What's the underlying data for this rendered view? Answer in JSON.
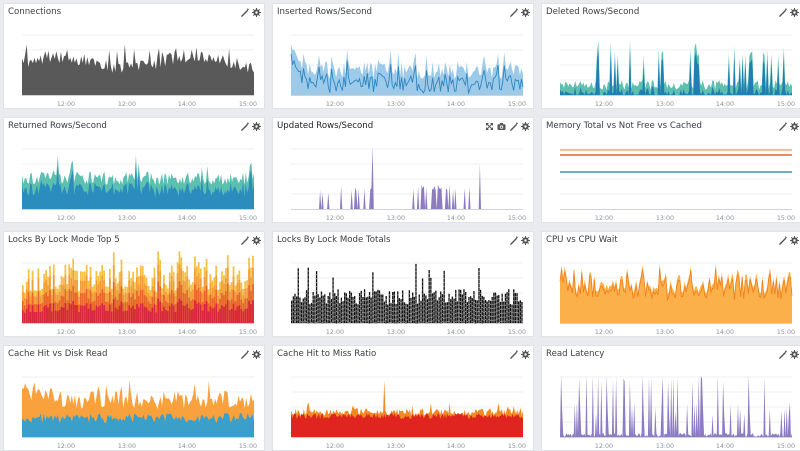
{
  "dashboard": {
    "panels": [
      {
        "title": "Connections",
        "tools": [
          "edit-icon",
          "gear-icon"
        ],
        "x_ticks": [
          "12:00",
          "12:00",
          "14:00",
          "15:00"
        ],
        "chart_data": {
          "type": "area",
          "x": [
            "12:00",
            "12:00",
            "14:00",
            "15:00"
          ],
          "series": [
            {
              "color": "#595959"
            }
          ]
        }
      },
      {
        "title": "Inserted Rows/Second",
        "tools": [
          "edit-icon",
          "gear-icon"
        ],
        "x_ticks": [
          "12:00",
          "13:00",
          "14:00",
          "15:00"
        ],
        "chart_data": {
          "type": "area",
          "x": [
            "12:00",
            "13:00",
            "14:00",
            "15:00"
          ],
          "series": [
            {
              "color": "#9ecae9"
            },
            {
              "color": "#2e86c1"
            }
          ]
        }
      },
      {
        "title": "Deleted Rows/Second",
        "tools": [
          "edit-icon",
          "gear-icon"
        ],
        "x_ticks": [
          "12:00",
          "13:00",
          "14:00",
          "15:00"
        ],
        "chart_data": {
          "type": "area",
          "x": [
            "12:00",
            "13:00",
            "14:00",
            "15:00"
          ],
          "series": [
            {
              "color": "#5bc0b0"
            },
            {
              "color": "#1f7fb4"
            }
          ]
        }
      },
      {
        "title": "Returned Rows/Second",
        "tools": [
          "edit-icon",
          "gear-icon"
        ],
        "x_ticks": [
          "12:00",
          "13:00",
          "14:00",
          "15:00"
        ],
        "chart_data": {
          "type": "area",
          "x": [
            "12:00",
            "13:00",
            "14:00",
            "15:00"
          ],
          "series": [
            {
              "color": "#5bc0b0"
            },
            {
              "color": "#2b8cbe"
            }
          ]
        }
      },
      {
        "title": "Updated Rows/Second",
        "tools": [
          "expand-icon",
          "camera-icon",
          "edit-icon",
          "gear-icon"
        ],
        "x_ticks": [
          "12:00",
          "13:00",
          "14:00",
          "15:00"
        ],
        "chart_data": {
          "type": "area",
          "x": [
            "12:00",
            "13:00",
            "14:00",
            "15:00"
          ],
          "series": [
            {
              "color": "#8e7cc3"
            }
          ]
        }
      },
      {
        "title": "Memory Total vs Not Free vs Cached",
        "tools": [
          "edit-icon",
          "gear-icon"
        ],
        "x_ticks": [
          "12:00",
          "13:00",
          "14:00",
          "15:00"
        ],
        "chart_data": {
          "type": "line",
          "x": [
            "12:00",
            "13:00",
            "14:00",
            "15:00"
          ],
          "series": [
            {
              "color": "#f0a060"
            },
            {
              "color": "#d9480f"
            },
            {
              "color": "#1f77b4"
            }
          ]
        }
      },
      {
        "title": "Locks By Lock Mode Top 5",
        "tools": [
          "edit-icon",
          "gear-icon"
        ],
        "x_ticks": [
          "12:00",
          "13:00",
          "14:00",
          "15:00"
        ],
        "chart_data": {
          "type": "bar",
          "x": [
            "12:00",
            "13:00",
            "14:00",
            "15:00"
          ],
          "series": [
            {
              "color": "#f6c142"
            },
            {
              "color": "#f39c3a"
            },
            {
              "color": "#e8662a"
            },
            {
              "color": "#d7263d"
            }
          ]
        }
      },
      {
        "title": "Locks By Lock Mode Totals",
        "tools": [
          "edit-icon",
          "gear-icon"
        ],
        "x_ticks": [
          "12:00",
          "13:00",
          "14:00",
          "15:00"
        ],
        "chart_data": {
          "type": "bar",
          "x": [
            "12:00",
            "13:00",
            "14:00",
            "15:00"
          ],
          "series": [
            {
              "color": "#111111"
            },
            {
              "color": "#888888"
            }
          ]
        }
      },
      {
        "title": "CPU vs CPU Wait",
        "tools": [
          "edit-icon",
          "gear-icon"
        ],
        "x_ticks": [
          "12:00",
          "13:00",
          "14:00",
          "15:00"
        ],
        "chart_data": {
          "type": "area",
          "x": [
            "12:00",
            "13:00",
            "14:00",
            "15:00"
          ],
          "series": [
            {
              "color": "#fbb04a"
            },
            {
              "color": "#f07f1c"
            }
          ]
        }
      },
      {
        "title": "Cache Hit vs Disk Read",
        "tools": [
          "edit-icon",
          "gear-icon"
        ],
        "x_ticks": [
          "12:00",
          "13:00",
          "14:00",
          "15:00"
        ],
        "chart_data": {
          "type": "area",
          "x": [
            "12:00",
            "13:00",
            "14:00",
            "15:00"
          ],
          "series": [
            {
              "color": "#f9a13d"
            },
            {
              "color": "#3aa0c9"
            }
          ]
        }
      },
      {
        "title": "Cache Hit to Miss Ratio",
        "tools": [
          "edit-icon",
          "gear-icon"
        ],
        "x_ticks": [
          "12:00",
          "13:00",
          "14:00",
          "15:00"
        ],
        "chart_data": {
          "type": "area",
          "x": [
            "12:00",
            "13:00",
            "14:00",
            "15:00"
          ],
          "series": [
            {
              "color": "#f08a24"
            },
            {
              "color": "#e0241f"
            }
          ]
        }
      },
      {
        "title": "Read Latency",
        "tools": [
          "edit-icon",
          "gear-icon"
        ],
        "x_ticks": [
          "12:00",
          "13:00",
          "14:00",
          "15:00"
        ],
        "chart_data": {
          "type": "area",
          "x": [
            "12:00",
            "13:00",
            "14:00",
            "15:00"
          ],
          "series": [
            {
              "color": "#8e7cc3"
            }
          ]
        }
      }
    ]
  }
}
